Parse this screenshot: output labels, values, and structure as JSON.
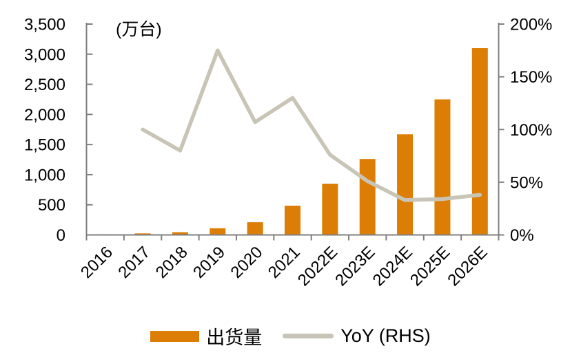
{
  "colors": {
    "bar": "#DC7E05",
    "line": "#C8C5B6",
    "axis": "#7F7F7F",
    "text": "#000000"
  },
  "legend": {
    "items": [
      {
        "label": "出货量"
      },
      {
        "label": "YoY (RHS)"
      }
    ]
  },
  "chart_data": {
    "type": "bar",
    "title": "(万台)",
    "categories": [
      "2016",
      "2017",
      "2018",
      "2019",
      "2020",
      "2021",
      "2022E",
      "2023E",
      "2024E",
      "2025E",
      "2026E"
    ],
    "series": [
      {
        "name": "出货量",
        "type": "bar",
        "axis": "left",
        "values": [
          12,
          25,
          45,
          110,
          210,
          485,
          850,
          1260,
          1670,
          2250,
          3100
        ]
      },
      {
        "name": "YoY (RHS)",
        "type": "line",
        "axis": "right",
        "values": [
          null,
          100,
          80,
          175,
          107,
          130,
          76,
          51,
          33,
          34,
          38
        ]
      }
    ],
    "left_axis": {
      "unit": "万台",
      "min": 0,
      "max": 3500,
      "ticks": [
        "0",
        "500",
        "1,000",
        "1,500",
        "2,000",
        "2,500",
        "3,000",
        "3,500"
      ]
    },
    "right_axis": {
      "unit": "%",
      "min": 0,
      "max": 200,
      "ticks": [
        "0%",
        "50%",
        "100%",
        "150%",
        "200%"
      ]
    },
    "grid": false,
    "legend_position": "bottom"
  }
}
